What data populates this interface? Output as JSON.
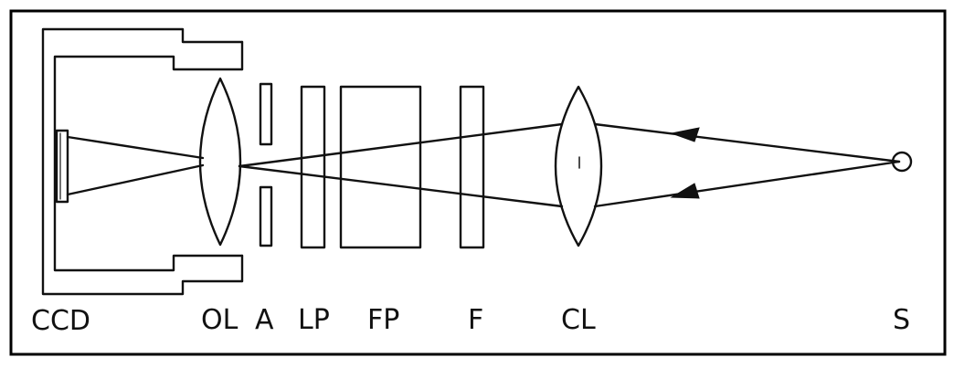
{
  "labels": {
    "ccd": "CCD",
    "ol": "OL",
    "a": "A",
    "lp": "LP",
    "fp": "FP",
    "f": "F",
    "cl": "CL",
    "s": "S"
  }
}
